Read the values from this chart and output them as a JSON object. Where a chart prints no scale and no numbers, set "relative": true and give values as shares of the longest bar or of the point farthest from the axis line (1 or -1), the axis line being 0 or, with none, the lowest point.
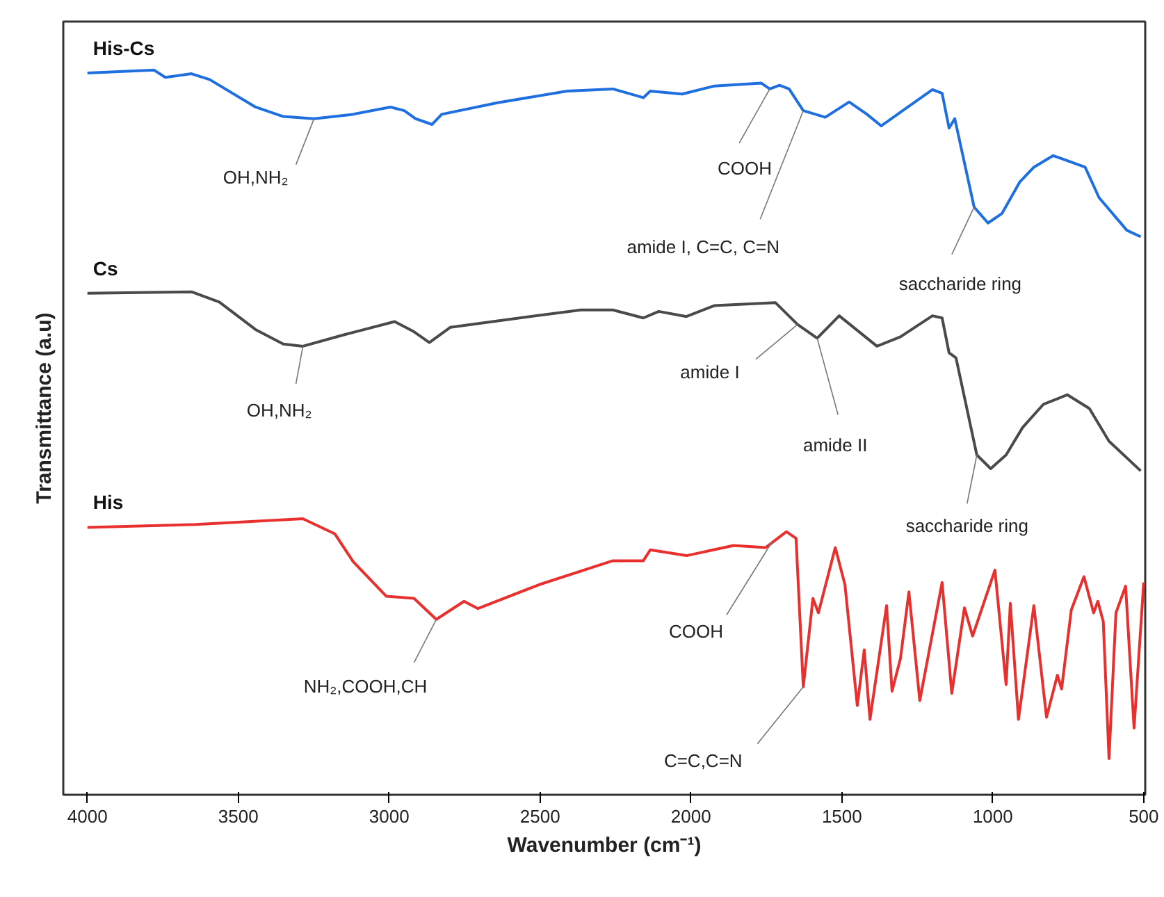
{
  "chart_data": {
    "type": "line",
    "relative": true,
    "xlabel": "Wavenumber (cm⁻¹)",
    "ylabel": "Transmittance (a.u)",
    "xlim": [
      4080,
      495
    ],
    "xticks": [
      4000,
      3500,
      3000,
      2500,
      2000,
      1500,
      1000,
      500
    ],
    "grid": false,
    "legend": false,
    "series": [
      {
        "name": "His-Cs",
        "color": "#1f6fe0",
        "x": [
          4000,
          3779,
          3742,
          3655,
          3595,
          3443,
          3351,
          3249,
          3120,
          2996,
          2950,
          2913,
          2858,
          2826,
          2641,
          2411,
          2259,
          2158,
          2135,
          2029,
          1923,
          1767,
          1739,
          1707,
          1675,
          1628,
          1555,
          1476,
          1417,
          1370,
          1306,
          1200,
          1168,
          1145,
          1126,
          1062,
          1016,
          970,
          910,
          864,
          800,
          694,
          648,
          556,
          510
        ],
        "values": [
          0.996,
          1.0,
          0.99,
          0.995,
          0.987,
          0.949,
          0.936,
          0.933,
          0.939,
          0.949,
          0.944,
          0.933,
          0.925,
          0.939,
          0.955,
          0.971,
          0.974,
          0.962,
          0.971,
          0.967,
          0.978,
          0.982,
          0.974,
          0.979,
          0.974,
          0.944,
          0.935,
          0.956,
          0.939,
          0.923,
          0.942,
          0.973,
          0.968,
          0.92,
          0.933,
          0.811,
          0.789,
          0.802,
          0.846,
          0.866,
          0.882,
          0.866,
          0.824,
          0.779,
          0.77
        ]
      },
      {
        "name": "Cs",
        "color": "#4a4a4a",
        "x": [
          4000,
          3655,
          3563,
          3443,
          3351,
          3286,
          3148,
          2982,
          2918,
          2867,
          2798,
          2568,
          2365,
          2259,
          2158,
          2107,
          2015,
          1923,
          1720,
          1647,
          1582,
          1509,
          1384,
          1306,
          1200,
          1168,
          1145,
          1122,
          1053,
          1007,
          956,
          901,
          832,
          753,
          680,
          615,
          510
        ],
        "values": [
          0.692,
          0.694,
          0.68,
          0.642,
          0.622,
          0.619,
          0.635,
          0.653,
          0.639,
          0.624,
          0.645,
          0.658,
          0.669,
          0.669,
          0.658,
          0.667,
          0.66,
          0.675,
          0.679,
          0.649,
          0.63,
          0.661,
          0.619,
          0.632,
          0.661,
          0.658,
          0.61,
          0.603,
          0.469,
          0.45,
          0.469,
          0.507,
          0.539,
          0.552,
          0.533,
          0.488,
          0.447
        ]
      },
      {
        "name": "His",
        "color": "#e8312f",
        "x": [
          4000,
          3641,
          3286,
          3180,
          3120,
          3010,
          2918,
          2844,
          2752,
          2706,
          2503,
          2259,
          2158,
          2135,
          2015,
          1859,
          1753,
          1684,
          1652,
          1628,
          1596,
          1578,
          1522,
          1490,
          1449,
          1426,
          1407,
          1352,
          1334,
          1306,
          1278,
          1242,
          1168,
          1136,
          1094,
          1067,
          993,
          956,
          942,
          915,
          864,
          822,
          786,
          772,
          740,
          698,
          666,
          652,
          634,
          615,
          592,
          560,
          532,
          500
        ],
        "values": [
          0.369,
          0.373,
          0.381,
          0.36,
          0.322,
          0.274,
          0.271,
          0.242,
          0.267,
          0.257,
          0.29,
          0.323,
          0.323,
          0.338,
          0.33,
          0.344,
          0.341,
          0.363,
          0.354,
          0.149,
          0.271,
          0.251,
          0.341,
          0.29,
          0.123,
          0.2,
          0.104,
          0.261,
          0.143,
          0.188,
          0.28,
          0.13,
          0.293,
          0.14,
          0.258,
          0.219,
          0.31,
          0.152,
          0.264,
          0.104,
          0.261,
          0.107,
          0.165,
          0.146,
          0.255,
          0.301,
          0.251,
          0.267,
          0.239,
          0.05,
          0.251,
          0.288,
          0.092,
          0.293
        ]
      }
    ],
    "annotations": [
      {
        "text": "OH,NH₂",
        "x": 3249,
        "y": 0.933
      },
      {
        "text": "COOH",
        "x": 1739,
        "y": 0.974
      },
      {
        "text": "amide I, C=C, C=N",
        "x": 1628,
        "y": 0.944
      },
      {
        "text": "saccharide ring",
        "x": 1062,
        "y": 0.811
      },
      {
        "text": "OH,NH₂",
        "x": 3286,
        "y": 0.619
      },
      {
        "text": "amide I",
        "x": 1647,
        "y": 0.649
      },
      {
        "text": "amide II",
        "x": 1582,
        "y": 0.63
      },
      {
        "text": "saccharide ring",
        "x": 1053,
        "y": 0.469
      },
      {
        "text": "NH₂,COOH,CH",
        "x": 2844,
        "y": 0.242
      },
      {
        "text": "COOH",
        "x": 1730,
        "y": 0.35
      },
      {
        "text": "C=C,C=N",
        "x": 1628,
        "y": 0.149
      }
    ]
  }
}
